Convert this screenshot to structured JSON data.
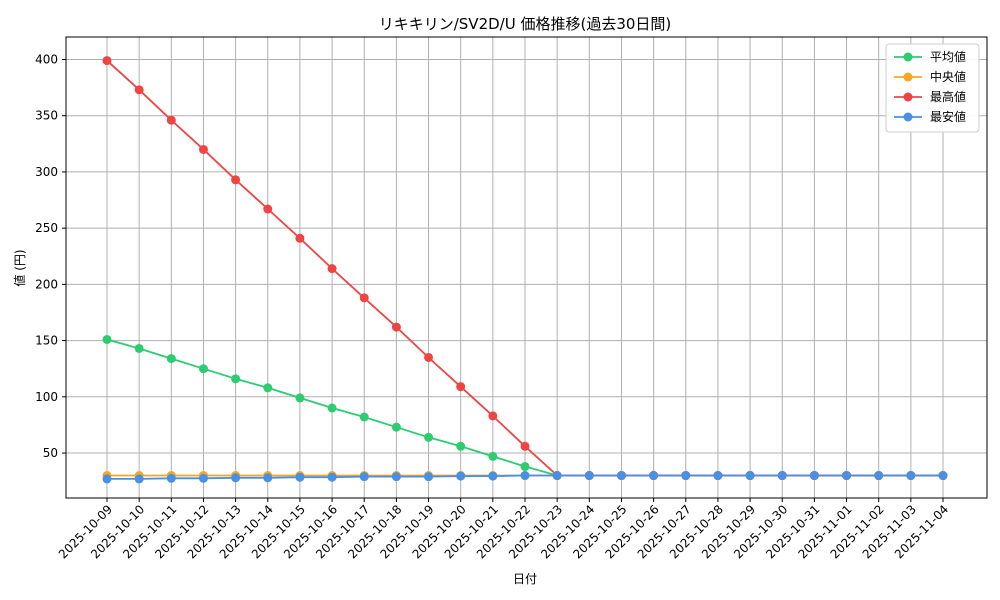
{
  "chart_data": {
    "type": "line",
    "title": "リキキリン/SV2D/U 価格推移(過去30日間)",
    "xlabel": "日付",
    "ylabel": "値 (円)",
    "ylim": [
      10,
      420
    ],
    "yticks": [
      50,
      100,
      150,
      200,
      250,
      300,
      350,
      400
    ],
    "grid": true,
    "legend_position": "top-right",
    "categories": [
      "2025-10-09",
      "2025-10-10",
      "2025-10-11",
      "2025-10-12",
      "2025-10-13",
      "2025-10-14",
      "2025-10-15",
      "2025-10-16",
      "2025-10-17",
      "2025-10-18",
      "2025-10-19",
      "2025-10-20",
      "2025-10-21",
      "2025-10-22",
      "2025-10-23",
      "2025-10-24",
      "2025-10-25",
      "2025-10-26",
      "2025-10-27",
      "2025-10-28",
      "2025-10-29",
      "2025-10-30",
      "2025-10-31",
      "2025-11-01",
      "2025-11-02",
      "2025-11-03",
      "2025-11-04"
    ],
    "series": [
      {
        "name": "平均値",
        "color": "#2ecc71",
        "values": [
          151,
          143,
          134,
          125,
          116,
          108,
          99,
          90,
          82,
          73,
          64,
          56,
          47,
          38,
          30,
          30,
          30,
          30,
          30,
          30,
          30,
          30,
          30,
          30,
          30,
          30,
          30
        ]
      },
      {
        "name": "中央値",
        "color": "#f5a623",
        "values": [
          30,
          30,
          30,
          30,
          30,
          30,
          30,
          30,
          30,
          30,
          30,
          30,
          30,
          30,
          30,
          30,
          30,
          30,
          30,
          30,
          30,
          30,
          30,
          30,
          30,
          30,
          30
        ]
      },
      {
        "name": "最高値",
        "color": "#ef4444",
        "values": [
          399,
          373,
          346,
          320,
          293,
          267,
          241,
          214,
          188,
          162,
          135,
          109,
          83,
          56,
          30,
          30,
          30,
          30,
          30,
          30,
          30,
          30,
          30,
          30,
          30,
          30,
          30
        ]
      },
      {
        "name": "最安値",
        "color": "#4a90e2",
        "values": [
          27,
          27,
          27.5,
          27.5,
          28,
          28,
          28.5,
          28.5,
          29,
          29,
          29,
          29.5,
          29.5,
          30,
          30,
          30,
          30,
          30,
          30,
          30,
          30,
          30,
          30,
          30,
          30,
          30,
          30
        ]
      }
    ]
  }
}
